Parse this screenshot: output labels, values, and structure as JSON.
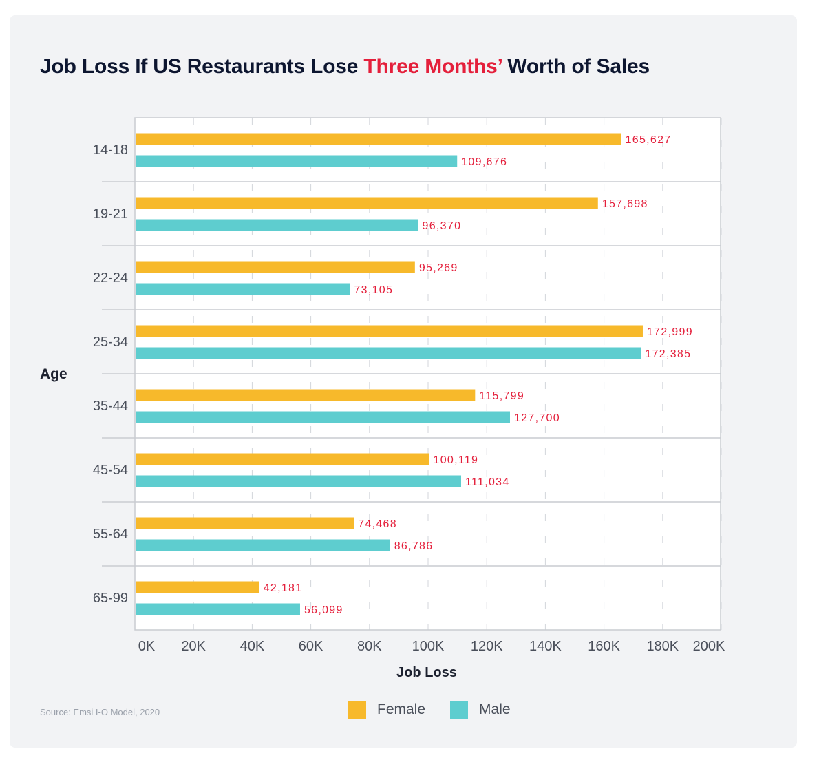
{
  "title": {
    "before": "Job Loss If US Restaurants Lose ",
    "highlight": "Three Months’",
    "after": " Worth of Sales"
  },
  "source": "Source: Emsi I-O Model, 2020",
  "colors": {
    "female": "#f7b92b",
    "male": "#5ecdcf",
    "label": "#e41f3b",
    "highlight": "#e41f3b"
  },
  "chart_data": {
    "type": "bar",
    "orientation": "horizontal",
    "xlabel": "Job Loss",
    "ylabel": "Age",
    "xlim": [
      0,
      200000
    ],
    "xticks": [
      "0K",
      "20K",
      "40K",
      "60K",
      "80K",
      "100K",
      "120K",
      "140K",
      "160K",
      "180K",
      "200K"
    ],
    "categories": [
      "14-18",
      "19-21",
      "22-24",
      "25-34",
      "35-44",
      "45-54",
      "55-64",
      "65-99"
    ],
    "series": [
      {
        "name": "Female",
        "values": [
          165627,
          157698,
          95269,
          172999,
          115799,
          100119,
          74468,
          42181
        ],
        "labels": [
          "165,627",
          "157,698",
          "95,269",
          "172,999",
          "115,799",
          "100,119",
          "74,468",
          "42,181"
        ]
      },
      {
        "name": "Male",
        "values": [
          109676,
          96370,
          73105,
          172385,
          127700,
          111034,
          86786,
          56099
        ],
        "labels": [
          "109,676",
          "96,370",
          "73,105",
          "172,385",
          "127,700",
          "111,034",
          "86,786",
          "56,099"
        ]
      }
    ],
    "legend": "bottom",
    "grid": true
  }
}
